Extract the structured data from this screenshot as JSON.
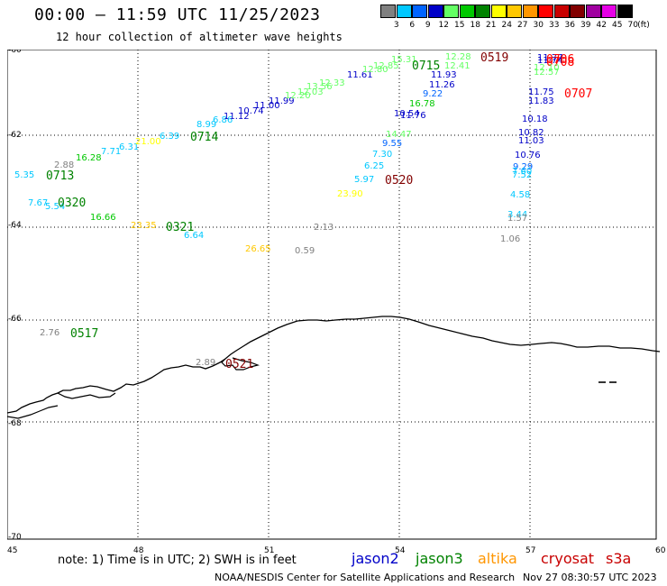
{
  "title": "00:00 – 11:59 UTC 11/25/2023",
  "subtitle": "12 hour collection of altimeter wave heights",
  "legend": {
    "unit": "(ft)",
    "bins": [
      {
        "label": "3",
        "color": "#808080"
      },
      {
        "label": "6",
        "color": "#00c8ff"
      },
      {
        "label": "9",
        "color": "#0064ff"
      },
      {
        "label": "12",
        "color": "#0000c8"
      },
      {
        "label": "15",
        "color": "#64ff64"
      },
      {
        "label": "18",
        "color": "#00c800"
      },
      {
        "label": "21",
        "color": "#008200"
      },
      {
        "label": "24",
        "color": "#ffff00"
      },
      {
        "label": "27",
        "color": "#ffc800"
      },
      {
        "label": "30",
        "color": "#ff9600"
      },
      {
        "label": "33",
        "color": "#ff0000"
      },
      {
        "label": "36",
        "color": "#c80000"
      },
      {
        "label": "39",
        "color": "#820000"
      },
      {
        "label": "42",
        "color": "#a000a0"
      },
      {
        "label": "45",
        "color": "#e600e6"
      },
      {
        "label": "70",
        "color": "#000000"
      }
    ]
  },
  "axes": {
    "lat_labels": [
      "-60",
      "-62",
      "-64",
      "-66",
      "-68",
      "-70"
    ],
    "lon_labels": [
      "45",
      "48",
      "51",
      "54",
      "57",
      "60"
    ]
  },
  "wave_labels": [
    {
      "t": "2.88",
      "c": "#808080"
    },
    {
      "t": "5.35",
      "c": "#00c8ff"
    },
    {
      "t": "0713",
      "c": "#008200"
    },
    {
      "t": "7.67",
      "c": "#00c8ff"
    },
    {
      "t": "5.54",
      "c": "#00c8ff"
    },
    {
      "t": "0320",
      "c": "#008200"
    },
    {
      "t": "16.66",
      "c": "#00c800"
    },
    {
      "t": "23.35",
      "c": "#ffc800"
    },
    {
      "t": "0321",
      "c": "#008200"
    },
    {
      "t": "6.64",
      "c": "#00c8ff"
    },
    {
      "t": "16.28",
      "c": "#00c800"
    },
    {
      "t": "7.71",
      "c": "#00c8ff"
    },
    {
      "t": "6.31",
      "c": "#00c8ff"
    },
    {
      "t": "21.00",
      "c": "#ffff00"
    },
    {
      "t": "6.39",
      "c": "#00c8ff"
    },
    {
      "t": "0714",
      "c": "#008200"
    },
    {
      "t": "8.99",
      "c": "#00c8ff"
    },
    {
      "t": "6.86",
      "c": "#00c8ff"
    },
    {
      "t": "11.12",
      "c": "#0000c8"
    },
    {
      "t": "10.74",
      "c": "#0000c8"
    },
    {
      "t": "11.00",
      "c": "#0000c8"
    },
    {
      "t": "11.99",
      "c": "#0000c8"
    },
    {
      "t": "12.20",
      "c": "#64ff64"
    },
    {
      "t": "12.03",
      "c": "#64ff64"
    },
    {
      "t": "13.56",
      "c": "#64ff64"
    },
    {
      "t": "12.33",
      "c": "#64ff64"
    },
    {
      "t": "11.61",
      "c": "#0000c8"
    },
    {
      "t": "12.80",
      "c": "#64ff64"
    },
    {
      "t": "12.85",
      "c": "#64ff64"
    },
    {
      "t": "15.31",
      "c": "#64ff64"
    },
    {
      "t": "0715",
      "c": "#008200"
    },
    {
      "t": "12.28",
      "c": "#64ff64"
    },
    {
      "t": "12.41",
      "c": "#64ff64"
    },
    {
      "t": "11.93",
      "c": "#0000c8"
    },
    {
      "t": "11.26",
      "c": "#0000c8"
    },
    {
      "t": "9.22",
      "c": "#0064ff"
    },
    {
      "t": "16.78",
      "c": "#00c800"
    },
    {
      "t": "11.76",
      "c": "#0000c8"
    },
    {
      "t": "10.54",
      "c": "#0000c8"
    },
    {
      "t": "14.47",
      "c": "#64ff64"
    },
    {
      "t": "9.55",
      "c": "#0064ff"
    },
    {
      "t": "7.30",
      "c": "#00c8ff"
    },
    {
      "t": "6.25",
      "c": "#00c8ff"
    },
    {
      "t": "5.97",
      "c": "#00c8ff"
    },
    {
      "t": "0520",
      "c": "#820000"
    },
    {
      "t": "23.90",
      "c": "#ffff00"
    },
    {
      "t": "0519",
      "c": "#820000"
    },
    {
      "t": "2.13",
      "c": "#808080"
    },
    {
      "t": "26.65",
      "c": "#ffc800"
    },
    {
      "t": "0.59",
      "c": "#808080"
    },
    {
      "t": "11.77",
      "c": "#0000c8"
    },
    {
      "t": "11.74",
      "c": "#0000c8"
    },
    {
      "t": "0706",
      "c": "#ff0000"
    },
    {
      "t": "0708",
      "c": "#ff0000"
    },
    {
      "t": "12.10",
      "c": "#64ff64"
    },
    {
      "t": "12.57",
      "c": "#64ff64"
    },
    {
      "t": "11.75",
      "c": "#0000c8"
    },
    {
      "t": "0707",
      "c": "#ff0000"
    },
    {
      "t": "11.83",
      "c": "#0000c8"
    },
    {
      "t": "10.18",
      "c": "#0000c8"
    },
    {
      "t": "10.82",
      "c": "#0000c8"
    },
    {
      "t": "11.03",
      "c": "#0000c8"
    },
    {
      "t": "10.76",
      "c": "#0000c8"
    },
    {
      "t": "9.29",
      "c": "#0064ff"
    },
    {
      "t": "7.60",
      "c": "#00c8ff"
    },
    {
      "t": "7.52",
      "c": "#00c8ff"
    },
    {
      "t": "4.58",
      "c": "#00c8ff"
    },
    {
      "t": "3.44",
      "c": "#00c8ff"
    },
    {
      "t": "1.57",
      "c": "#808080"
    },
    {
      "t": "1.06",
      "c": "#808080"
    },
    {
      "t": "2.76",
      "c": "#808080"
    },
    {
      "t": "0517",
      "c": "#008200"
    },
    {
      "t": "2.89",
      "c": "#808080"
    },
    {
      "t": "0521",
      "c": "#820000"
    }
  ],
  "note": "note:  1) Time is in UTC;  2) SWH is in feet",
  "satellites": [
    {
      "name": "jason2",
      "color": "#0000c8"
    },
    {
      "name": "jason3",
      "color": "#008200"
    },
    {
      "name": "altika",
      "color": "#ff9600"
    },
    {
      "name": "cryosat",
      "color": "#c80000"
    },
    {
      "name": "s3a",
      "color": "#c80000"
    }
  ],
  "credit": "NOAA/NESDIS Center for Satellite Applications and Research",
  "timestamp": "Nov 27 08:30:57 UTC 2023"
}
